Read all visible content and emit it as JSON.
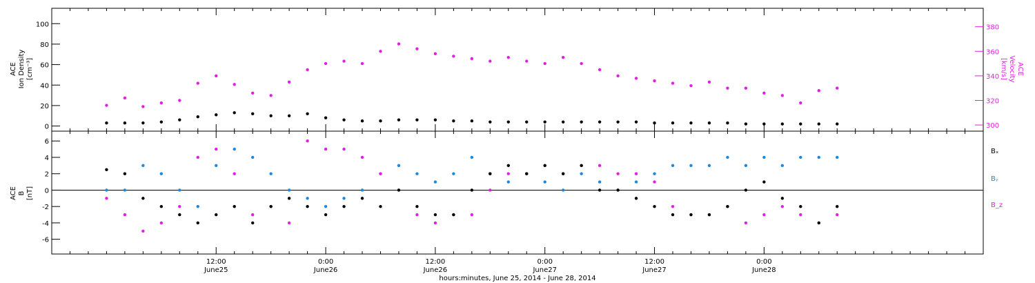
{
  "chart_data": [
    {
      "type": "scatter",
      "panel": "top",
      "ylabel_left": [
        "ACE",
        "Ion Density",
        "[cm⁻³]"
      ],
      "ylabel_right": [
        "ACE",
        "Velocity",
        "[km/s]"
      ],
      "ylim_left": [
        -5,
        115
      ],
      "left_ticks": [
        "0",
        "20",
        "40",
        "60",
        "80",
        "100"
      ],
      "ylim_right": [
        295,
        395
      ],
      "right_ticks": [
        "300",
        "320",
        "340",
        "360",
        "380"
      ],
      "series": [
        {
          "color": "#000000",
          "axis": "left",
          "x": [
            0,
            2,
            4,
            6,
            8,
            10,
            12,
            14,
            16,
            18,
            20,
            22,
            24,
            26,
            28,
            30,
            32,
            34,
            36,
            38,
            40,
            42,
            44,
            46,
            48,
            50,
            52,
            54,
            56,
            58,
            60,
            62,
            64,
            66,
            68,
            70,
            72,
            74,
            76,
            78,
            80
          ],
          "y": [
            3,
            3,
            3,
            4,
            6,
            9,
            11,
            13,
            12,
            10,
            10,
            12,
            8,
            6,
            5,
            5,
            6,
            6,
            6,
            5,
            5,
            4,
            4,
            4,
            4,
            4,
            4,
            4,
            4,
            4,
            3,
            3,
            3,
            3,
            3,
            2,
            2,
            2,
            2,
            2,
            2
          ]
        },
        {
          "color": "#e020e0",
          "axis": "right",
          "x": [
            0,
            2,
            4,
            6,
            8,
            10,
            12,
            14,
            16,
            18,
            20,
            22,
            24,
            26,
            28,
            30,
            32,
            34,
            36,
            38,
            40,
            42,
            44,
            46,
            48,
            50,
            52,
            54,
            56,
            58,
            60,
            62,
            64,
            66,
            68,
            70,
            72,
            74,
            76,
            78,
            80
          ],
          "y": [
            316,
            322,
            315,
            318,
            320,
            334,
            340,
            333,
            326,
            324,
            335,
            345,
            350,
            352,
            350,
            360,
            366,
            362,
            358,
            356,
            354,
            352,
            355,
            352,
            350,
            355,
            350,
            345,
            340,
            338,
            336,
            334,
            332,
            335,
            330,
            330,
            326,
            324,
            318,
            328,
            330
          ]
        }
      ]
    },
    {
      "type": "scatter",
      "panel": "bottom",
      "ylabel_left": [
        "ACE",
        "B",
        "[nT]"
      ],
      "ylim": [
        -7.8,
        7.2
      ],
      "left_ticks": [
        "-6",
        "-4",
        "-2",
        "0",
        "2",
        "4",
        "6"
      ],
      "zero_line": true,
      "legend": [
        "Bₓ",
        "Bᵧ",
        "B_z"
      ],
      "series": [
        {
          "name": "Bₓ",
          "color": "#000000",
          "x": [
            0,
            2,
            4,
            6,
            8,
            10,
            12,
            14,
            16,
            18,
            20,
            22,
            24,
            26,
            28,
            30,
            32,
            34,
            36,
            38,
            40,
            42,
            44,
            46,
            48,
            50,
            52,
            54,
            56,
            58,
            60,
            62,
            64,
            66,
            68,
            70,
            72,
            74,
            76,
            78,
            80
          ],
          "y": [
            2.5,
            2,
            -1,
            -2,
            -3,
            -4,
            -3,
            -2,
            -4,
            -2,
            -1,
            -2,
            -3,
            -2,
            -1,
            -2,
            0,
            -2,
            -3,
            -3,
            0,
            2,
            3,
            2,
            3,
            2,
            3,
            0,
            0,
            -1,
            -2,
            -3,
            -3,
            -3,
            -2,
            0,
            1,
            -1,
            -2,
            -4,
            -2
          ]
        },
        {
          "name": "Bᵧ",
          "color": "#1e88dd",
          "x": [
            0,
            2,
            4,
            6,
            8,
            10,
            12,
            14,
            16,
            18,
            20,
            22,
            24,
            26,
            28,
            30,
            32,
            34,
            36,
            38,
            40,
            42,
            44,
            46,
            48,
            50,
            52,
            54,
            56,
            58,
            60,
            62,
            64,
            66,
            68,
            70,
            72,
            74,
            76,
            78,
            80
          ],
          "y": [
            0,
            0,
            3,
            2,
            0,
            -2,
            3,
            5,
            4,
            2,
            0,
            -1,
            -2,
            -1,
            0,
            2,
            3,
            2,
            1,
            2,
            4,
            2,
            1,
            2,
            1,
            0,
            2,
            1,
            0,
            1,
            2,
            3,
            3,
            3,
            4,
            3,
            4,
            3,
            4,
            4,
            4
          ]
        },
        {
          "name": "B_z",
          "color": "#e020e0",
          "x": [
            0,
            2,
            4,
            6,
            8,
            10,
            12,
            14,
            16,
            18,
            20,
            22,
            24,
            26,
            28,
            30,
            32,
            34,
            36,
            38,
            40,
            42,
            44,
            46,
            48,
            50,
            52,
            54,
            56,
            58,
            60,
            62,
            64,
            66,
            68,
            70,
            72,
            74,
            76,
            78,
            80
          ],
          "y": [
            -1,
            -3,
            -5,
            -4,
            -2,
            4,
            5,
            2,
            -3,
            -2,
            -4,
            6,
            5,
            5,
            4,
            2,
            0,
            -3,
            -4,
            -3,
            -3,
            0,
            2,
            2,
            3,
            2,
            3,
            3,
            2,
            2,
            1,
            -2,
            -3,
            -3,
            -2,
            -4,
            -3,
            -2,
            -3,
            -4,
            -3
          ]
        }
      ]
    }
  ],
  "x_axis": {
    "ticks": [
      {
        "time": "12:00",
        "day": "June25"
      },
      {
        "time": "0:00",
        "day": "June26"
      },
      {
        "time": "12:00",
        "day": "June26"
      },
      {
        "time": "0:00",
        "day": "June27"
      },
      {
        "time": "12:00",
        "day": "June27"
      },
      {
        "time": "0:00",
        "day": "June28"
      }
    ],
    "label": "hours:minutes, June 25, 2014 - June 28, 2014"
  }
}
